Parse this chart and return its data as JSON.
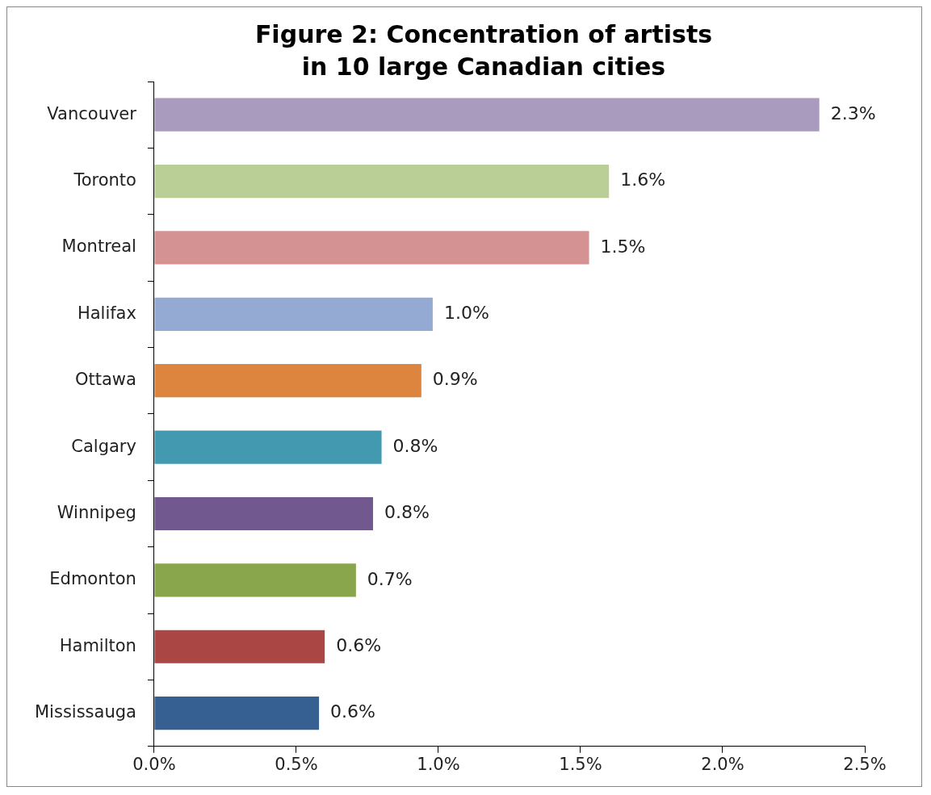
{
  "chart_data": {
    "type": "bar",
    "orientation": "horizontal",
    "title": "Figure 2: Concentration of artists in 10 large Canadian cities",
    "categories": [
      "Vancouver",
      "Toronto",
      "Montreal",
      "Halifax",
      "Ottawa",
      "Calgary",
      "Winnipeg",
      "Edmonton",
      "Hamilton",
      "Mississauga"
    ],
    "values": [
      2.34,
      1.6,
      1.53,
      0.98,
      0.94,
      0.8,
      0.77,
      0.71,
      0.6,
      0.58
    ],
    "colors": [
      "#a99bbd",
      "#b9cf96",
      "#d49292",
      "#95aad2",
      "#dd843e",
      "#4299b0",
      "#71588f",
      "#8aa64d",
      "#aa4644",
      "#376092"
    ],
    "value_labels": [
      "2.3%",
      "1.6%",
      "1.5%",
      "1.0%",
      "0.9%",
      "0.8%",
      "0.8%",
      "0.7%",
      "0.6%",
      "0.6%"
    ],
    "xlim": [
      0,
      2.5
    ],
    "xticks": [
      {
        "value": 0,
        "label": "0.0%"
      },
      {
        "value": 0.5,
        "label": "0.5%"
      },
      {
        "value": 1,
        "label": "1.0%"
      },
      {
        "value": 1.5,
        "label": "1.5%"
      },
      {
        "value": 2,
        "label": "2.0%"
      },
      {
        "value": 2.5,
        "label": "2.5%"
      }
    ],
    "grid": false,
    "legend": false
  }
}
